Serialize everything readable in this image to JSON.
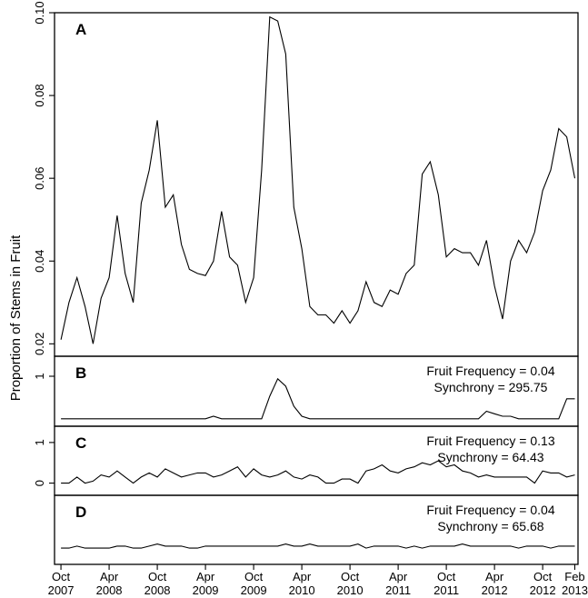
{
  "chart_data": {
    "type": "line",
    "ylabel": "Proportion of Stems in Fruit",
    "x_ticks": [
      {
        "month": 0,
        "line1": "Oct",
        "line2": "2007"
      },
      {
        "month": 6,
        "line1": "Apr",
        "line2": "2008"
      },
      {
        "month": 12,
        "line1": "Oct",
        "line2": "2008"
      },
      {
        "month": 18,
        "line1": "Apr",
        "line2": "2009"
      },
      {
        "month": 24,
        "line1": "Oct",
        "line2": "2009"
      },
      {
        "month": 30,
        "line1": "Apr",
        "line2": "2010"
      },
      {
        "month": 36,
        "line1": "Oct",
        "line2": "2010"
      },
      {
        "month": 42,
        "line1": "Apr",
        "line2": "2011"
      },
      {
        "month": 48,
        "line1": "Oct",
        "line2": "2011"
      },
      {
        "month": 54,
        "line1": "Apr",
        "line2": "2012"
      },
      {
        "month": 60,
        "line1": "Oct",
        "line2": "2012"
      },
      {
        "month": 64,
        "line1": "Feb",
        "line2": "2013"
      }
    ],
    "panels": [
      {
        "label": "A",
        "ylim": [
          0.017,
          0.1
        ],
        "yticks": [
          0.02,
          0.04,
          0.06,
          0.08,
          0.1
        ],
        "ytick_labels": [
          "0.02",
          "0.04",
          "0.06",
          "0.08",
          "0.10"
        ],
        "values": [
          0.021,
          0.03,
          0.036,
          0.029,
          0.02,
          0.031,
          0.036,
          0.051,
          0.037,
          0.03,
          0.054,
          0.062,
          0.074,
          0.053,
          0.056,
          0.044,
          0.038,
          0.037,
          0.0365,
          0.04,
          0.052,
          0.041,
          0.039,
          0.03,
          0.036,
          0.062,
          0.099,
          0.098,
          0.09,
          0.053,
          0.043,
          0.029,
          0.027,
          0.027,
          0.025,
          0.028,
          0.025,
          0.028,
          0.035,
          0.03,
          0.029,
          0.033,
          0.032,
          0.037,
          0.039,
          0.061,
          0.064,
          0.056,
          0.041,
          0.043,
          0.042,
          0.042,
          0.039,
          0.045,
          0.034,
          0.026,
          0.04,
          0.045,
          0.042,
          0.047,
          0.057,
          0.062,
          0.072,
          0.07,
          0.06
        ]
      },
      {
        "label": "B",
        "ylim": [
          0,
          1.4
        ],
        "yticks": [
          1
        ],
        "ytick_labels": [
          "1"
        ],
        "frequency_text": "Fruit Frequency = 0.04",
        "synchrony_text": "Synchrony = 295.75",
        "values": [
          0.15,
          0.15,
          0.15,
          0.15,
          0.15,
          0.15,
          0.15,
          0.15,
          0.15,
          0.15,
          0.15,
          0.15,
          0.15,
          0.15,
          0.15,
          0.15,
          0.15,
          0.15,
          0.15,
          0.2,
          0.15,
          0.15,
          0.15,
          0.15,
          0.15,
          0.15,
          0.6,
          0.95,
          0.8,
          0.4,
          0.2,
          0.15,
          0.15,
          0.15,
          0.15,
          0.15,
          0.15,
          0.15,
          0.15,
          0.15,
          0.15,
          0.15,
          0.15,
          0.15,
          0.15,
          0.15,
          0.15,
          0.15,
          0.15,
          0.15,
          0.15,
          0.15,
          0.15,
          0.3,
          0.25,
          0.2,
          0.2,
          0.15,
          0.15,
          0.15,
          0.15,
          0.15,
          0.15,
          0.55,
          0.55
        ]
      },
      {
        "label": "C",
        "ylim": [
          -0.3,
          1.4
        ],
        "yticks": [
          0,
          1
        ],
        "ytick_labels": [
          "0",
          "1"
        ],
        "frequency_text": "Fruit Frequency = 0.13",
        "synchrony_text": "Synchrony = 64.43",
        "values": [
          0.0,
          0.0,
          0.15,
          0.0,
          0.05,
          0.2,
          0.15,
          0.3,
          0.15,
          0.0,
          0.15,
          0.25,
          0.15,
          0.35,
          0.25,
          0.15,
          0.2,
          0.25,
          0.25,
          0.15,
          0.2,
          0.3,
          0.4,
          0.15,
          0.35,
          0.2,
          0.15,
          0.2,
          0.3,
          0.15,
          0.1,
          0.2,
          0.15,
          0.0,
          0.0,
          0.1,
          0.1,
          0.0,
          0.3,
          0.35,
          0.45,
          0.3,
          0.25,
          0.35,
          0.4,
          0.5,
          0.45,
          0.55,
          0.4,
          0.45,
          0.3,
          0.25,
          0.15,
          0.2,
          0.15,
          0.15,
          0.15,
          0.15,
          0.15,
          0.0,
          0.3,
          0.25,
          0.25,
          0.15,
          0.2
        ]
      },
      {
        "label": "D",
        "ylim": [
          -0.4,
          1.3
        ],
        "yticks": [],
        "ytick_labels": [],
        "frequency_text": "Fruit Frequency = 0.04",
        "synchrony_text": "Synchrony = 65.68",
        "values": [
          0.0,
          0.0,
          0.05,
          0.0,
          0.0,
          0.0,
          0.0,
          0.05,
          0.05,
          0.0,
          0.0,
          0.05,
          0.1,
          0.05,
          0.05,
          0.05,
          0.0,
          0.0,
          0.05,
          0.05,
          0.05,
          0.05,
          0.05,
          0.05,
          0.05,
          0.05,
          0.05,
          0.05,
          0.1,
          0.05,
          0.05,
          0.1,
          0.05,
          0.05,
          0.05,
          0.05,
          0.05,
          0.1,
          0.0,
          0.05,
          0.05,
          0.05,
          0.05,
          0.0,
          0.05,
          0.0,
          0.05,
          0.05,
          0.05,
          0.05,
          0.1,
          0.05,
          0.05,
          0.05,
          0.05,
          0.05,
          0.05,
          0.0,
          0.05,
          0.05,
          0.05,
          0.0,
          0.05,
          0.05,
          0.05
        ]
      }
    ]
  }
}
